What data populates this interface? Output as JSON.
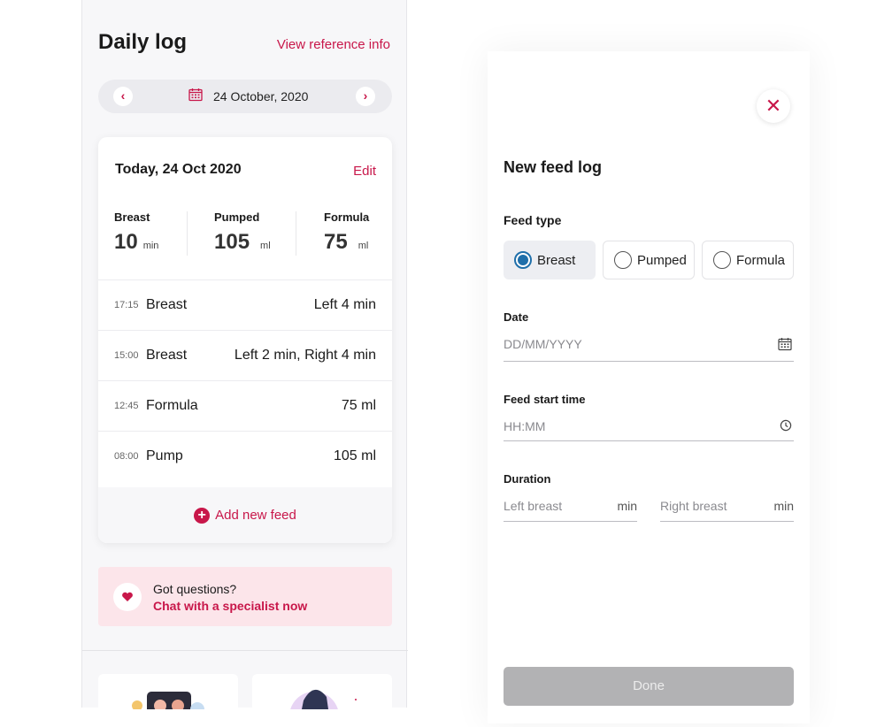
{
  "daily_log": {
    "title": "Daily log",
    "reference_link": "View reference info",
    "date": "24 October, 2020",
    "summary": {
      "title": "Today, 24 Oct 2020",
      "edit_label": "Edit",
      "stats": [
        {
          "label": "Breast",
          "value": "10",
          "unit": "min"
        },
        {
          "label": "Pumped",
          "value": "105",
          "unit": "ml"
        },
        {
          "label": "Formula",
          "value": "75",
          "unit": "ml"
        }
      ],
      "feeds": [
        {
          "time": "17:15",
          "type": "Breast",
          "amount": "Left 4 min"
        },
        {
          "time": "15:00",
          "type": "Breast",
          "amount": "Left 2 min, Right 4 min"
        },
        {
          "time": "12:45",
          "type": "Formula",
          "amount": "75 ml"
        },
        {
          "time": "08:00",
          "type": "Pump",
          "amount": "105 ml"
        }
      ],
      "add_label": "Add new feed"
    },
    "chat": {
      "question": "Got questions?",
      "link": "Chat with a specialist now"
    }
  },
  "feed_form": {
    "title": "New feed log",
    "feed_type_label": "Feed type",
    "feed_types": [
      {
        "label": "Breast",
        "selected": true
      },
      {
        "label": "Pumped",
        "selected": false
      },
      {
        "label": "Formula",
        "selected": false
      }
    ],
    "date_label": "Date",
    "date_placeholder": "DD/MM/YYYY",
    "time_label": "Feed start time",
    "time_placeholder": "HH:MM",
    "duration_label": "Duration",
    "left_placeholder": "Left breast",
    "right_placeholder": "Right breast",
    "duration_unit": "min",
    "done_label": "Done"
  },
  "colors": {
    "accent": "#c8174a",
    "radio_selected": "#1f6faa",
    "banner_bg": "#fce5ea",
    "disabled_button": "#b2b2b4"
  }
}
